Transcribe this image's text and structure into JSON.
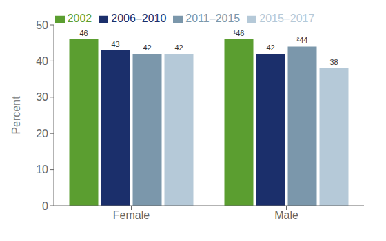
{
  "chart_data": {
    "type": "bar",
    "categories": [
      "Female",
      "Male"
    ],
    "series": [
      {
        "name": "2002",
        "color": "#5b9e30",
        "values": [
          46,
          46
        ],
        "value_labels": [
          "46",
          "¹46"
        ]
      },
      {
        "name": "2006–2010",
        "color": "#1b2f6b",
        "values": [
          43,
          42
        ],
        "value_labels": [
          "43",
          "42"
        ]
      },
      {
        "name": "2011–2015",
        "color": "#7b97ab",
        "values": [
          42,
          44
        ],
        "value_labels": [
          "42",
          "²44"
        ]
      },
      {
        "name": "2015–2017",
        "color": "#b5c9d8",
        "values": [
          42,
          38
        ],
        "value_labels": [
          "42",
          "38"
        ]
      }
    ],
    "ylabel": "Percent",
    "ylim": [
      0,
      50
    ],
    "yticks": [
      0,
      10,
      20,
      30,
      40,
      50
    ],
    "data_labels": true,
    "legend": "top",
    "grid": false
  }
}
